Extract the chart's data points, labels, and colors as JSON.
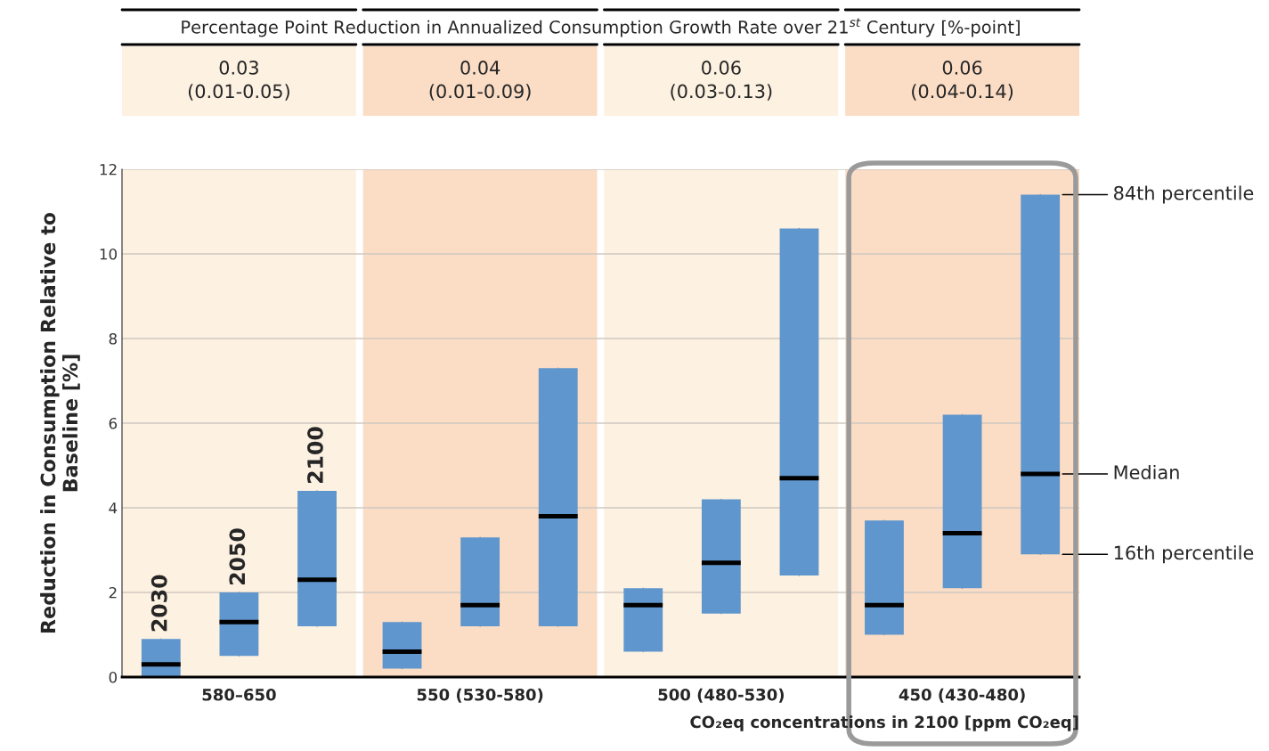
{
  "chart_data": {
    "type": "box",
    "categories": [
      "2030",
      "2050",
      "2100",
      null,
      null,
      null,
      null,
      null,
      null,
      null,
      null,
      null
    ],
    "ylabel": "Reduction in Consumption Relative to\nBaseline [%]",
    "ylim": [
      0,
      12
    ],
    "yticks": [
      0,
      2,
      4,
      6,
      8,
      10,
      12
    ],
    "grid": "y",
    "annotations": [
      "Percentage Point Reduction in Annualized Consumption Growth Rate over 21$^{st}$ Century [%-point]",
      "0.03\n(0.01-0.05)",
      "0.04\n(0.01-0.09)",
      "0.06\n(0.03-0.13)",
      "0.06\n(0.04-0.14)",
      "580–650",
      "550 (530-580)",
      "500 (480-530)",
      "450 (430-480)",
      "CO₂eq concentrations in 2100 [ppm CO₂eq]",
      "84th percentile",
      "Median",
      "16th percentile"
    ],
    "series": [
      {
        "color": "#5f96cd",
        "boxes": [
          {
            "low": 0.0,
            "q1": 0.0,
            "median": 0.3,
            "q3": 0.9,
            "high": 0.9
          },
          {
            "low": 0.5,
            "q1": 0.5,
            "median": 1.3,
            "q3": 2.0,
            "high": 2.0
          },
          {
            "low": 1.2,
            "q1": 1.2,
            "median": 2.3,
            "q3": 4.4,
            "high": 4.4
          },
          {
            "low": 0.2,
            "q1": 0.2,
            "median": 0.6,
            "q3": 1.3,
            "high": 1.3
          },
          {
            "low": 1.2,
            "q1": 1.2,
            "median": 1.7,
            "q3": 3.3,
            "high": 3.3
          },
          {
            "low": 1.2,
            "q1": 1.2,
            "median": 3.8,
            "q3": 7.3,
            "high": 7.3
          },
          {
            "low": 0.6,
            "q1": 0.6,
            "median": 1.7,
            "q3": 2.1,
            "high": 2.1
          },
          {
            "low": 1.5,
            "q1": 1.5,
            "median": 2.7,
            "q3": 4.2,
            "high": 4.2
          },
          {
            "low": 2.4,
            "q1": 2.4,
            "median": 4.7,
            "q3": 10.6,
            "high": 10.6
          },
          {
            "low": 1.0,
            "q1": 1.0,
            "median": 1.7,
            "q3": 3.7,
            "high": 3.7
          },
          {
            "low": 2.1,
            "q1": 2.1,
            "median": 3.4,
            "q3": 6.2,
            "high": 6.2
          },
          {
            "low": 2.9,
            "q1": 2.9,
            "median": 4.8,
            "q3": 11.4,
            "high": 11.4
          }
        ]
      }
    ]
  }
}
